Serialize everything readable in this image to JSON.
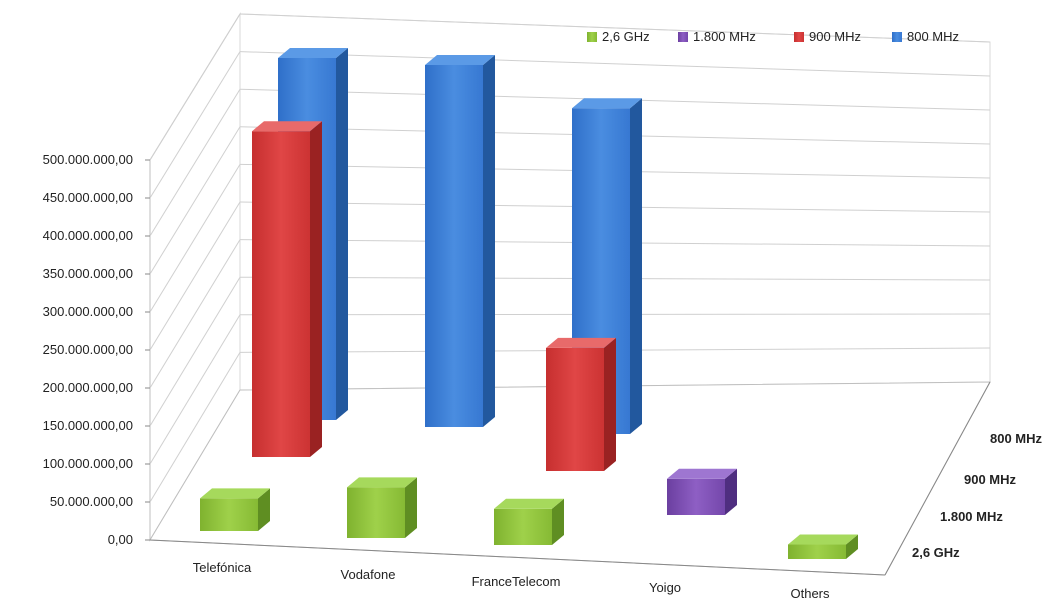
{
  "chart_data": {
    "type": "bar",
    "subtype": "3d-column",
    "categories": [
      "Telefónica",
      "Vodafone",
      "FranceTelecom",
      "Yoigo",
      "Others"
    ],
    "y_tick_labels": [
      "0,00",
      "50.000.000,00",
      "100.000.000,00",
      "150.000.000,00",
      "200.000.000,00",
      "250.000.000,00",
      "300.000.000,00",
      "350.000.000,00",
      "400.000.000,00",
      "450.000.000,00",
      "500.000.000,00"
    ],
    "ylim": [
      0,
      500000000
    ],
    "depth_labels": [
      "2,6 GHz",
      "1.800 MHz",
      "900 MHz",
      "800 MHz"
    ],
    "legend_position": "top-right",
    "grid": true,
    "series": [
      {
        "name": "2,6 GHz",
        "color": "#8dc63f",
        "values": [
          45000000,
          70000000,
          50000000,
          0,
          20000000
        ]
      },
      {
        "name": "1.800 MHz",
        "color": "#7f4fb5",
        "values": [
          0,
          0,
          0,
          50000000,
          0
        ]
      },
      {
        "name": "900 MHz",
        "color": "#d63a3a",
        "values": [
          450000000,
          0,
          170000000,
          0,
          0
        ]
      },
      {
        "name": "800 MHz",
        "color": "#3a7bd5",
        "values": [
          500000000,
          500000000,
          450000000,
          0,
          0
        ]
      }
    ]
  }
}
